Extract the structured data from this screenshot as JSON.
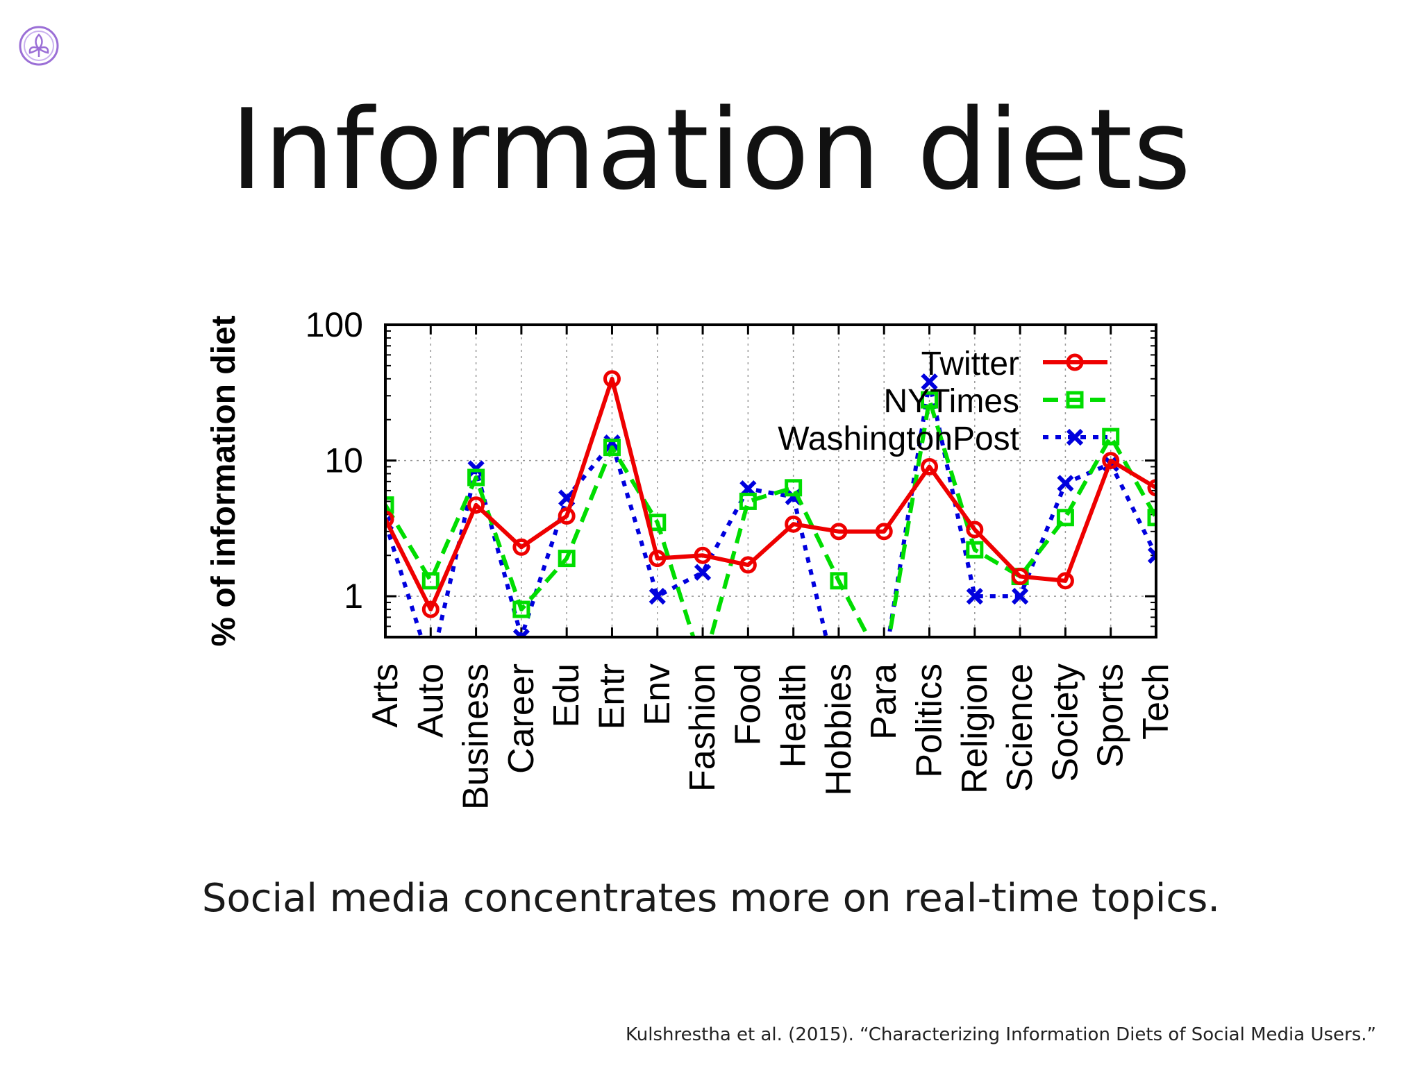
{
  "slide": {
    "title": "Information diets",
    "caption": "Social media concentrates more on real-time topics.",
    "citation": "Kulshrestha et al. (2015). “Characterizing Information Diets of Social Media Users.”",
    "logo_icon": "fleur-de-lis-circle-icon"
  },
  "colors": {
    "twitter": "#ee0000",
    "nytimes": "#00dd00",
    "washingtonpost": "#0000dd",
    "logo": "#9b6fd6"
  },
  "chart_data": {
    "type": "line",
    "ylabel": "% of information diet",
    "xlabel": "",
    "yscale": "log",
    "ylim": [
      0.5,
      100
    ],
    "yticks": [
      {
        "value": 1,
        "label": "1"
      },
      {
        "value": 10,
        "label": "10"
      },
      {
        "value": 100,
        "label": "100"
      }
    ],
    "grid": true,
    "legend_position": "top-right",
    "categories": [
      "Arts",
      "Auto",
      "Business",
      "Career",
      "Edu",
      "Entr",
      "Env",
      "Fashion",
      "Food",
      "Health",
      "Hobbies",
      "Para",
      "Politics",
      "Religion",
      "Science",
      "Society",
      "Sports",
      "Tech"
    ],
    "series": [
      {
        "name": "Twitter",
        "color": "#ee0000",
        "style": "solid",
        "marker": "circle",
        "values": [
          3.7,
          0.8,
          4.7,
          2.3,
          3.9,
          40,
          1.9,
          2.0,
          1.7,
          3.4,
          3.0,
          3.0,
          9.0,
          3.1,
          1.4,
          1.3,
          10,
          6.3
        ]
      },
      {
        "name": "NYTimes",
        "color": "#00dd00",
        "style": "dashed",
        "marker": "square",
        "values": [
          4.7,
          1.3,
          7.5,
          0.8,
          1.9,
          12.5,
          3.5,
          0.3,
          5.0,
          6.3,
          1.3,
          0.3,
          28,
          2.2,
          1.4,
          3.8,
          15,
          3.8
        ]
      },
      {
        "name": "WashingtonPost",
        "color": "#0000dd",
        "style": "dotted",
        "marker": "x",
        "values": [
          3.5,
          0.3,
          8.7,
          0.5,
          5.3,
          13.5,
          1.0,
          1.5,
          6.2,
          5.4,
          0.2,
          0.3,
          38,
          1.0,
          1.0,
          6.8,
          9.5,
          2.0
        ]
      }
    ]
  }
}
